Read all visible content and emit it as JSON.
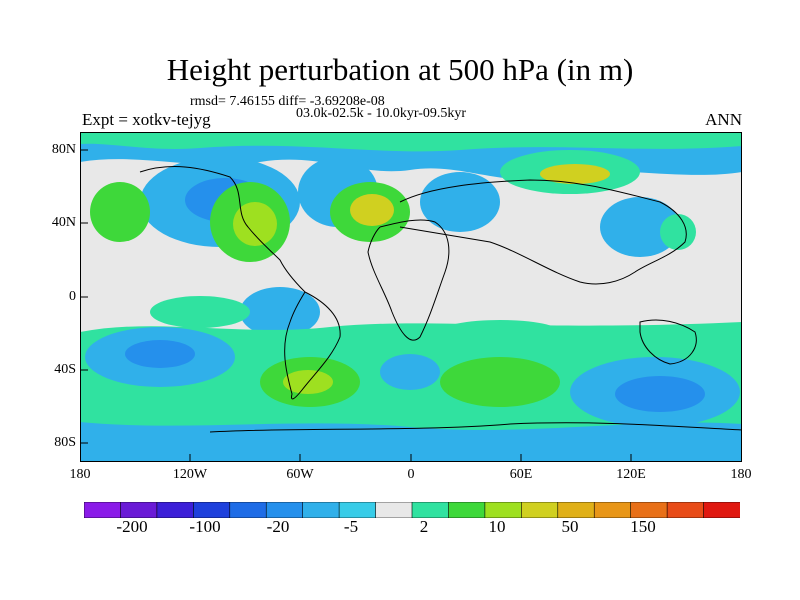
{
  "title": "Height perturbation at 500 hPa (in m)",
  "stats": "rmsd= 7.46155 diff= -3.69208e-08",
  "experiment": "Expt = xotkv-tejyg",
  "period": "03.0k-02.5k - 10.0kyr-09.5kyr",
  "season": "ANN",
  "lat_labels": [
    "80N",
    "40N",
    "0",
    "40S",
    "80S"
  ],
  "lon_labels": [
    "180",
    "120W",
    "60W",
    "0",
    "60E",
    "120E",
    "180"
  ],
  "colorbar": {
    "colors": [
      "#8a1be8",
      "#6a1ad6",
      "#3c1fd8",
      "#1e40dc",
      "#1e6ce6",
      "#2590ec",
      "#30b0ea",
      "#38cce8",
      "#e8e8e8",
      "#30e2a0",
      "#3ed83a",
      "#9ee020",
      "#d0d020",
      "#e0b018",
      "#e89618",
      "#e87018",
      "#e84c18",
      "#e01810"
    ],
    "labels": [
      "-200",
      "-100",
      "-20",
      "-5",
      "2",
      "10",
      "50",
      "150"
    ]
  }
}
